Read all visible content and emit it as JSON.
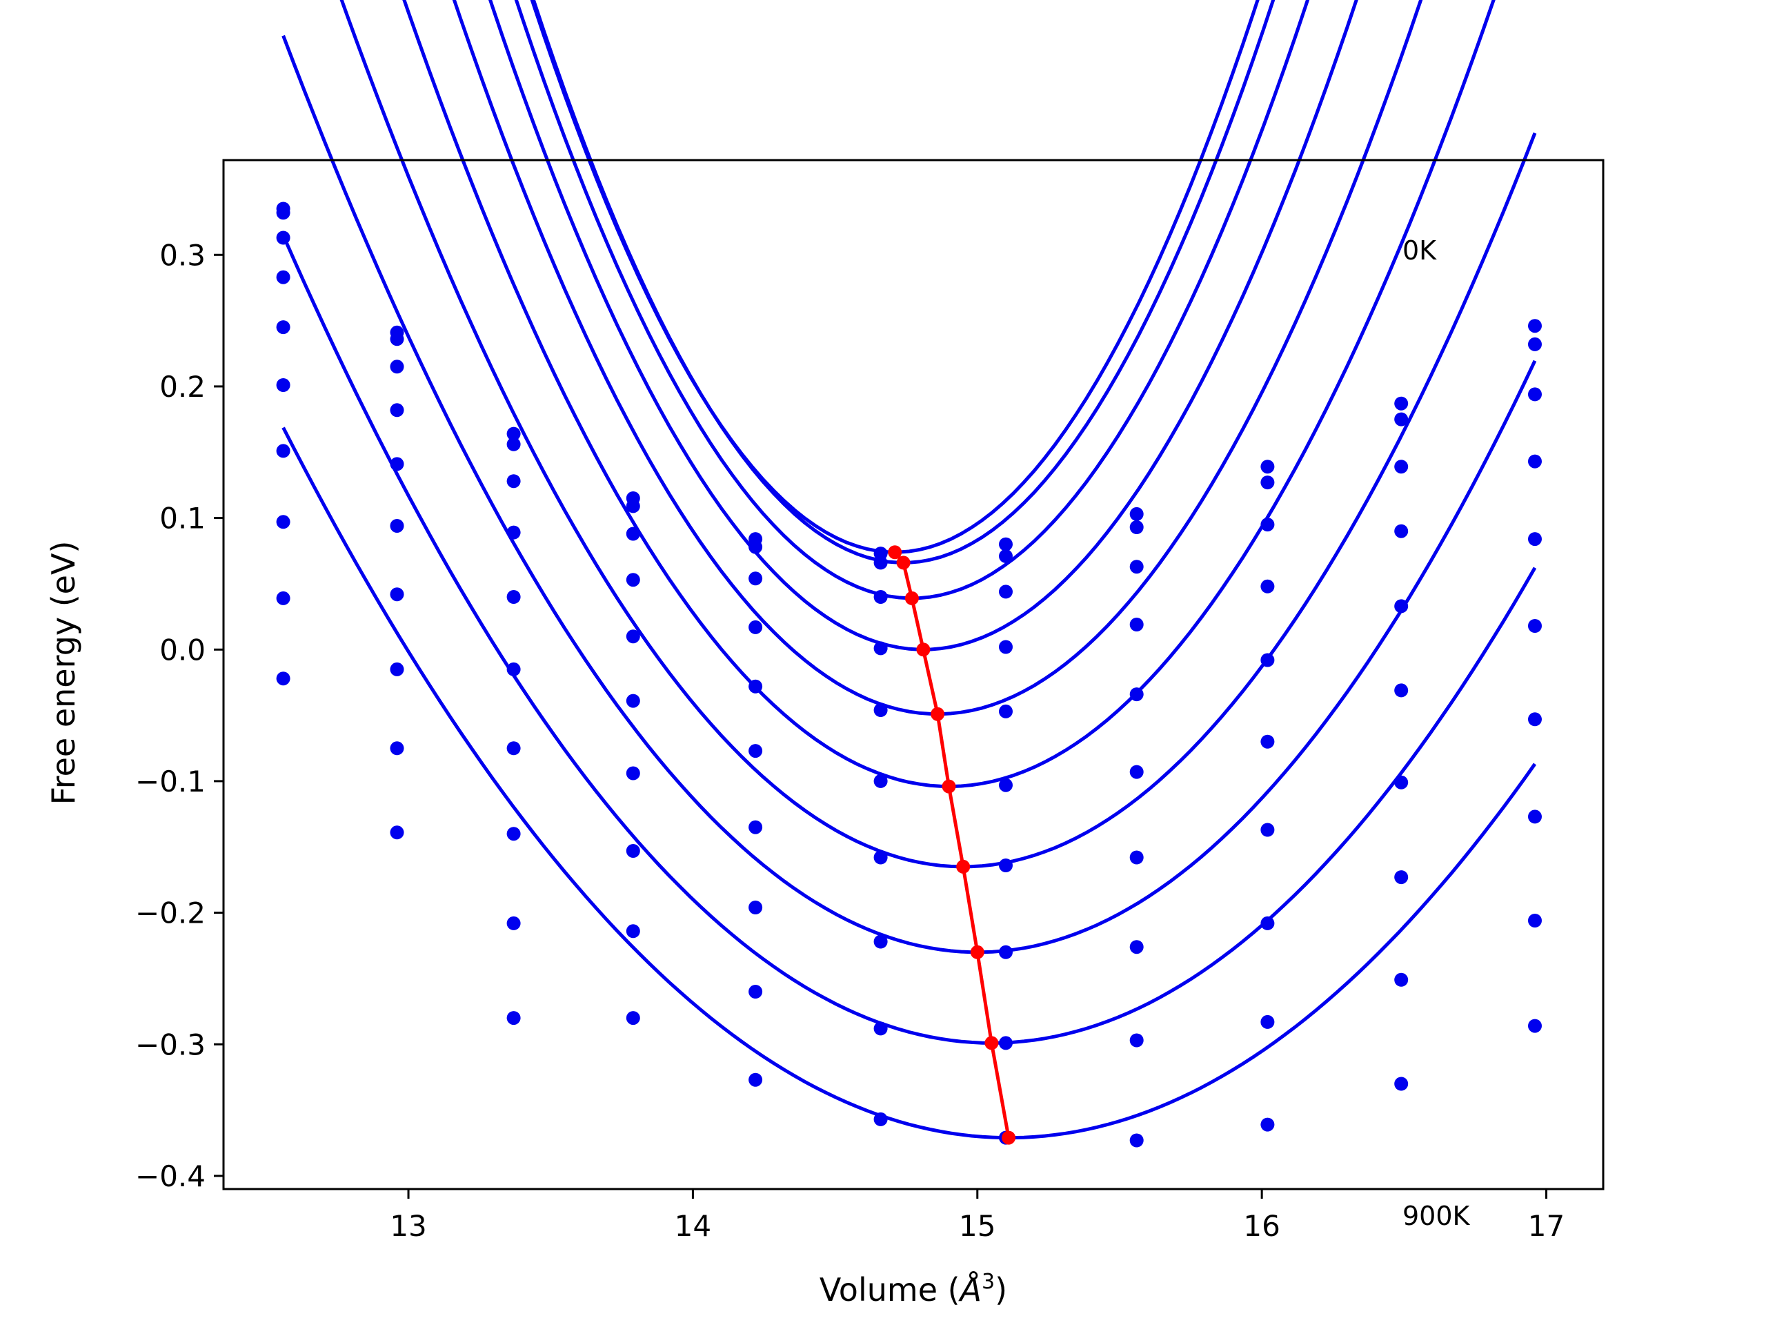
{
  "chart_data": {
    "type": "line",
    "title": "",
    "xlabel": "Volume (Å^3)",
    "xlabel_main": "Volume (",
    "xlabel_unit": "Å",
    "xlabel_sup": "3",
    "xlabel_close": ")",
    "ylabel": "Free energy (eV)",
    "xlim": [
      12.35,
      17.2
    ],
    "ylim": [
      -0.41,
      0.372
    ],
    "xticks": [
      13,
      14,
      15,
      16,
      17
    ],
    "yticks": [
      -0.4,
      -0.3,
      -0.2,
      -0.1,
      0.0,
      0.1,
      0.2,
      0.3
    ],
    "ytick_labels": [
      "−0.4",
      "−0.3",
      "−0.2",
      "−0.1",
      "0.0",
      "0.1",
      "0.2",
      "0.3"
    ],
    "annotations": [
      {
        "text": "0K",
        "x": 16.5,
        "y": 0.3
      },
      {
        "text": "900K",
        "x": 16.5,
        "y": -0.432
      }
    ],
    "colors": {
      "curves": "#0000ee",
      "points": "#0000ee",
      "minima": "#ff0000"
    },
    "x": [
      12.56,
      12.96,
      13.37,
      13.79,
      14.22,
      14.66,
      15.1,
      15.56,
      16.02,
      16.49,
      16.96
    ],
    "series": [
      {
        "points": [
          0.335,
          0.241,
          0.164,
          0.115,
          0.084,
          0.073,
          0.08,
          0.103,
          0.139,
          0.187,
          0.246
        ],
        "fit_a": 0.258,
        "v0": 14.71,
        "e0": 0.074
      },
      {
        "points": [
          0.332,
          0.236,
          0.156,
          0.109,
          0.078,
          0.066,
          0.071,
          0.093,
          0.127,
          0.175,
          0.232
        ],
        "fit_a": 0.253,
        "v0": 14.74,
        "e0": 0.066
      },
      {
        "points": [
          0.313,
          0.215,
          0.128,
          0.088,
          0.054,
          0.04,
          0.044,
          0.063,
          0.095,
          0.139,
          0.194
        ],
        "fit_a": 0.235,
        "v0": 14.77,
        "e0": 0.039
      },
      {
        "points": [
          0.283,
          0.182,
          0.089,
          0.053,
          0.017,
          0.001,
          0.002,
          0.019,
          0.048,
          0.09,
          0.143
        ],
        "fit_a": 0.213,
        "v0": 14.81,
        "e0": 0.0
      },
      {
        "points": [
          0.245,
          0.141,
          0.04,
          0.01,
          -0.028,
          -0.046,
          -0.047,
          -0.034,
          -0.008,
          0.033,
          0.084
        ],
        "fit_a": 0.188,
        "v0": 14.86,
        "e0": -0.049
      },
      {
        "points": [
          0.201,
          0.094,
          -0.015,
          -0.039,
          -0.077,
          -0.1,
          -0.103,
          -0.093,
          -0.07,
          -0.031,
          0.018
        ],
        "fit_a": 0.163,
        "v0": 14.9,
        "e0": -0.104
      },
      {
        "points": [
          0.151,
          0.042,
          -0.075,
          -0.094,
          -0.135,
          -0.158,
          -0.164,
          -0.158,
          -0.137,
          -0.101,
          -0.053
        ],
        "fit_a": 0.138,
        "v0": 14.95,
        "e0": -0.165
      },
      {
        "points": [
          0.097,
          -0.015,
          -0.14,
          -0.153,
          -0.196,
          -0.222,
          -0.23,
          -0.226,
          -0.208,
          -0.173,
          -0.127
        ],
        "fit_a": 0.117,
        "v0": 15.0,
        "e0": -0.23
      },
      {
        "points": [
          0.039,
          -0.075,
          -0.208,
          -0.214,
          -0.26,
          -0.288,
          -0.299,
          -0.297,
          -0.283,
          -0.251,
          -0.206
        ],
        "fit_a": 0.099,
        "v0": 15.05,
        "e0": -0.299
      },
      {
        "points": [
          -0.022,
          -0.139,
          -0.28,
          -0.28,
          -0.327,
          -0.357,
          -0.371,
          -0.373,
          -0.361,
          -0.33,
          -0.286
        ],
        "fit_a": 0.083,
        "v0": 15.11,
        "e0": -0.371
      }
    ]
  }
}
